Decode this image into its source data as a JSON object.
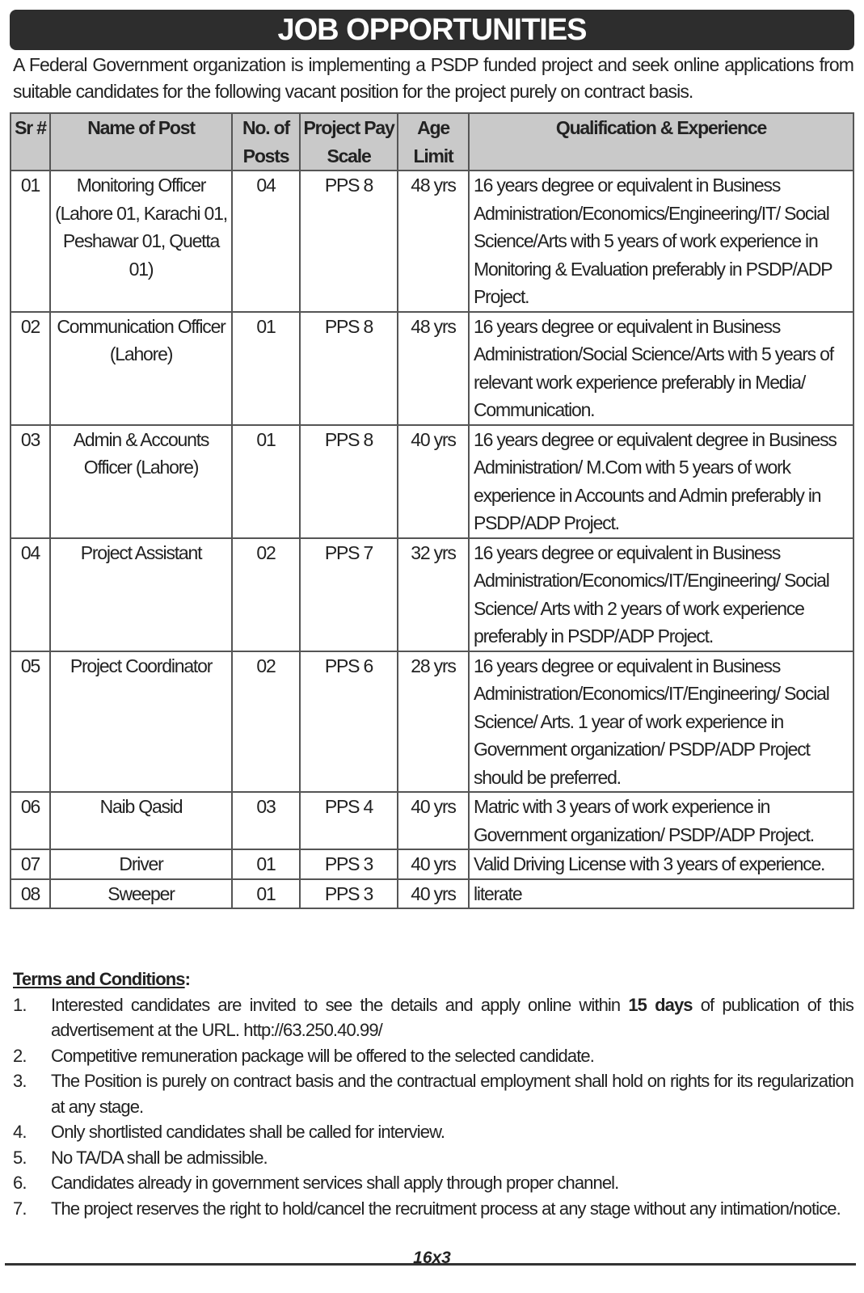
{
  "header": {
    "title": "JOB OPPORTUNITIES",
    "intro": "A Federal Government organization is implementing a PSDP funded project and seek online applications from suitable candidates for the following vacant position for the project purely on contract basis."
  },
  "table": {
    "columns": [
      "Sr #",
      "Name of Post",
      "No. of Posts",
      "Project Pay Scale",
      "Age Limit",
      "Qualification & Experience"
    ],
    "rows": [
      [
        "01",
        "Monitoring Officer (Lahore 01, Karachi 01, Peshawar 01, Quetta 01)",
        "04",
        "PPS 8",
        "48 yrs",
        "16 years degree or equivalent in Business Administration/Economics/Engineering/IT/ Social Science/Arts with 5 years of work experience in Monitoring & Evaluation preferably in PSDP/ADP Project."
      ],
      [
        "02",
        "Communication Officer (Lahore)",
        "01",
        "PPS 8",
        "48 yrs",
        "16 years degree or equivalent in Business Administration/Social Science/Arts with 5 years of relevant work experience preferably in Media/ Communication."
      ],
      [
        "03",
        "Admin & Accounts Officer (Lahore)",
        "01",
        "PPS 8",
        "40 yrs",
        "16 years degree or equivalent degree in Business Administration/ M.Com with 5 years of work experience in Accounts and Admin preferably in PSDP/ADP Project."
      ],
      [
        "04",
        "Project Assistant",
        "02",
        "PPS 7",
        "32 yrs",
        "16 years degree or equivalent in Business Administration/Economics/IT/Engineering/ Social Science/ Arts with 2 years of work experience preferably in PSDP/ADP Project."
      ],
      [
        "05",
        "Project Coordinator",
        "02",
        "PPS 6",
        "28 yrs",
        "16 years degree or equivalent in Business Administration/Economics/IT/Engineering/ Social Science/ Arts. 1 year of work experience in Government organization/ PSDP/ADP Project should be preferred."
      ],
      [
        "06",
        "Naib Qasid",
        "03",
        "PPS 4",
        "40 yrs",
        "Matric with 3 years of work experience in Government organization/ PSDP/ADP Project."
      ],
      [
        "07",
        "Driver",
        "01",
        "PPS 3",
        "40 yrs",
        "Valid Driving License with 3 years of experience."
      ],
      [
        "08",
        "Sweeper",
        "01",
        "PPS 3",
        "40 yrs",
        "literate"
      ]
    ]
  },
  "terms": {
    "title": "Terms and Conditions",
    "colon": ":",
    "items": [
      {
        "number": "1.",
        "text": "Interested candidates are invited to see the details and apply online within",
        "bold": "15 days",
        "after": "of publication of this advertisement at the URL. http://63.250.40.99/"
      },
      {
        "number": "2.",
        "text": "Competitive remuneration package will be offered to the selected candidate."
      },
      {
        "number": "3.",
        "text": "The Position is purely on contract basis and the contractual employment shall hold on rights for its regularization at any stage."
      },
      {
        "number": "4.",
        "text": "Only shortlisted candidates shall be called for interview."
      },
      {
        "number": "5.",
        "text": "No TA/DA shall be admissible."
      },
      {
        "number": "6.",
        "text": "Candidates already in government services shall apply through proper channel."
      },
      {
        "number": "7.",
        "text": "The project reserves the right to hold/cancel the recruitment process at any stage without any intimation/notice."
      }
    ]
  },
  "footer": {
    "size": "16x3"
  }
}
